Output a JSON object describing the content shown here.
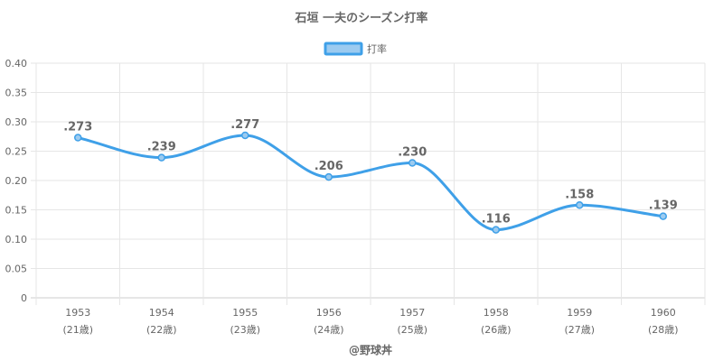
{
  "chart_data": {
    "type": "line",
    "title": "石垣 一夫のシーズン打率",
    "categories": [
      "1953",
      "1954",
      "1955",
      "1956",
      "1957",
      "1958",
      "1959",
      "1960"
    ],
    "category_sublabels": [
      "(21歳)",
      "(22歳)",
      "(23歳)",
      "(24歳)",
      "(25歳)",
      "(26歳)",
      "(27歳)",
      "(28歳)"
    ],
    "series": [
      {
        "name": "打率",
        "values": [
          0.273,
          0.239,
          0.277,
          0.206,
          0.23,
          0.116,
          0.158,
          0.139
        ],
        "data_labels": [
          ".273",
          ".239",
          ".277",
          ".206",
          ".230",
          ".116",
          ".158",
          ".139"
        ],
        "color": "#3fa0e8",
        "fill_color": "#9ccbf0"
      }
    ],
    "ylim": [
      0,
      0.4
    ],
    "yticks": [
      "0",
      "0.05",
      "0.10",
      "0.15",
      "0.20",
      "0.25",
      "0.30",
      "0.35",
      "0.40"
    ],
    "grid": true,
    "legend_position": "top-center",
    "footer": "@野球丼"
  }
}
